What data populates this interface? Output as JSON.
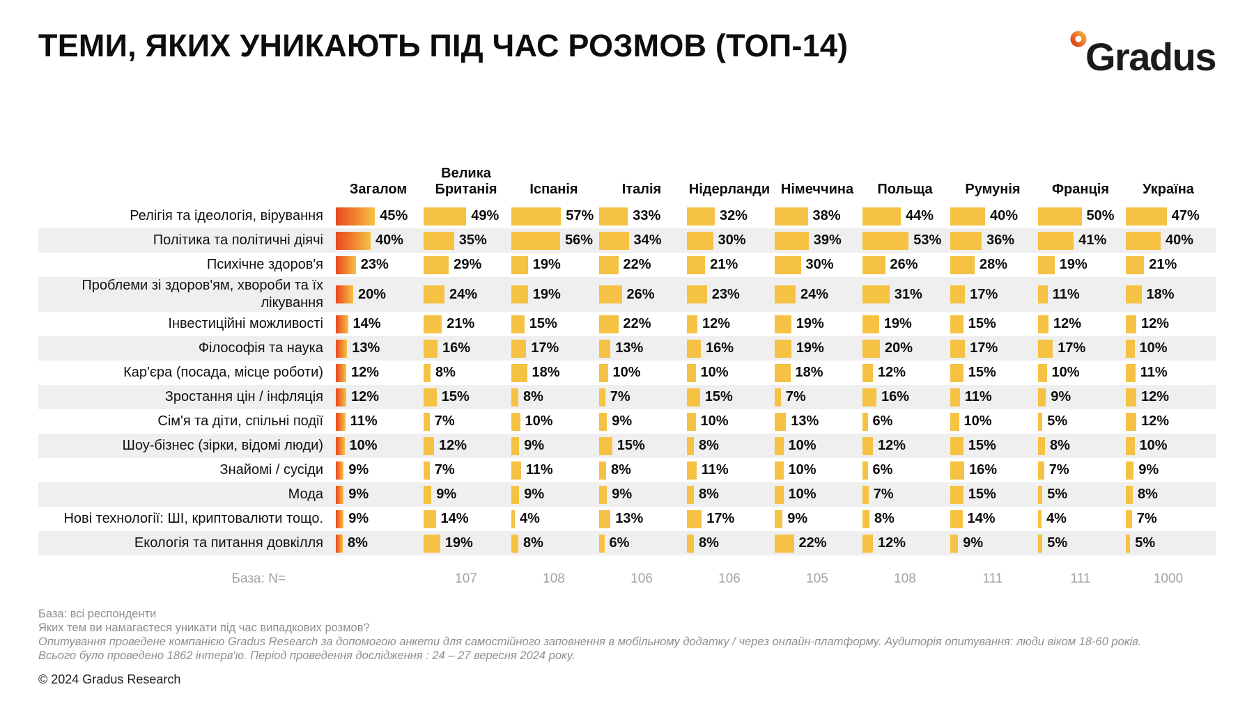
{
  "title": "ТЕМИ, ЯКИХ УНИКАЮТЬ ПІД ЧАС РОЗМОВ (ТОП-14)",
  "logo": {
    "text": "Gradus"
  },
  "chart_data": {
    "type": "bar",
    "orientation": "horizontal",
    "unit": "percent",
    "title": "ТЕМИ, ЯКИХ УНИКАЮТЬ ПІД ЧАС РОЗМОВ (ТОП-14)",
    "categories": [
      "Релігія та ідеологія, вірування",
      "Політика та політичні діячі",
      "Психічне здоров'я",
      "Проблеми зі здоров'ям, хвороби та їх лікування",
      "Інвестиційні можливості",
      "Філософія та наука",
      "Кар'єра (посада, місце роботи)",
      "Зростання цін / інфляція",
      "Сім'я та діти, спільні події",
      "Шоу-бізнес (зірки, відомі люди)",
      "Знайомі / сусіди",
      "Мода",
      "Нові технології: ШІ, криптовалюти тощо.",
      "Екологія та питання довкілля"
    ],
    "series": [
      {
        "name": "Загалом",
        "values": [
          45,
          40,
          23,
          20,
          14,
          13,
          12,
          12,
          11,
          10,
          9,
          9,
          9,
          8
        ]
      },
      {
        "name": "Велика Британія",
        "values": [
          49,
          35,
          29,
          24,
          21,
          16,
          8,
          15,
          7,
          12,
          7,
          9,
          14,
          19
        ]
      },
      {
        "name": "Іспанія",
        "values": [
          57,
          56,
          19,
          19,
          15,
          17,
          18,
          8,
          10,
          9,
          11,
          9,
          4,
          8
        ]
      },
      {
        "name": "Італія",
        "values": [
          33,
          34,
          22,
          26,
          22,
          13,
          10,
          7,
          9,
          15,
          8,
          9,
          13,
          6
        ]
      },
      {
        "name": "Нідерланди",
        "values": [
          32,
          30,
          21,
          23,
          12,
          16,
          10,
          15,
          10,
          8,
          11,
          8,
          17,
          8
        ]
      },
      {
        "name": "Німеччина",
        "values": [
          38,
          39,
          30,
          24,
          19,
          19,
          18,
          7,
          13,
          10,
          10,
          10,
          9,
          22
        ]
      },
      {
        "name": "Польща",
        "values": [
          44,
          53,
          26,
          31,
          19,
          20,
          12,
          16,
          6,
          12,
          6,
          7,
          8,
          12
        ]
      },
      {
        "name": "Румунія",
        "values": [
          40,
          36,
          28,
          17,
          15,
          17,
          15,
          11,
          10,
          15,
          16,
          15,
          14,
          9
        ]
      },
      {
        "name": "Франція",
        "values": [
          50,
          41,
          19,
          11,
          12,
          17,
          10,
          9,
          5,
          8,
          7,
          5,
          4,
          5
        ]
      },
      {
        "name": "Україна",
        "values": [
          47,
          40,
          21,
          18,
          12,
          10,
          11,
          12,
          12,
          10,
          9,
          8,
          7,
          5
        ]
      }
    ],
    "base_label": "База: N=",
    "base_n": [
      "",
      "107",
      "108",
      "106",
      "106",
      "105",
      "108",
      "111",
      "111",
      "1000"
    ],
    "value_suffix": "%",
    "colors": {
      "bar": "#F5C244",
      "total_gradient": [
        "#E8491D",
        "#F07B2F",
        "#F5C244"
      ],
      "alt_row": "#EFEFEF",
      "logo_ring": [
        "#E0401A",
        "#F6A93B"
      ]
    },
    "legend_position": "none",
    "grid": false
  },
  "footer": {
    "lines": [
      {
        "text": "База: всі респонденти",
        "italic": false
      },
      {
        "text": "Яких тем ви намагаєтеся уникати під час випадкових розмов?",
        "italic": false
      },
      {
        "text": "Опитування проведене компанією Gradus Research за допомогою анкети для самостійного заповнення в мобільному додатку / через онлайн-платформу. Аудиторія опитування: люди віком 18-60 років.",
        "italic": true
      },
      {
        "text": "Всього було проведено 1862 інтерв'ю. Період проведення дослідження : 24 – 27 вересня 2024 року.",
        "italic": true
      }
    ],
    "copyright": "© 2024 Gradus Research"
  }
}
